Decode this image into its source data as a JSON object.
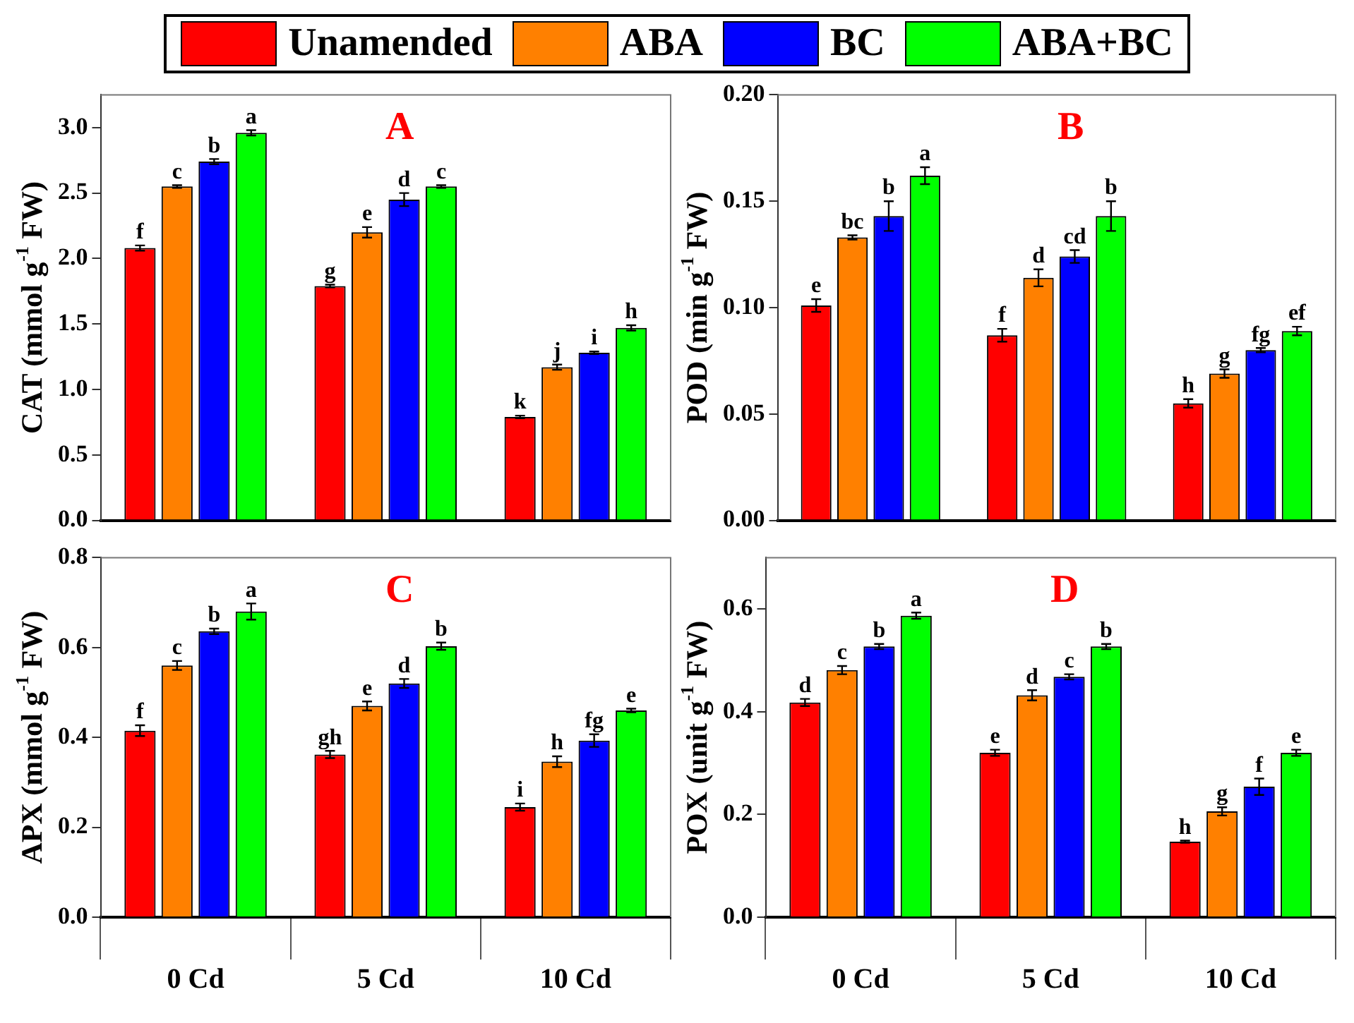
{
  "chart_data": [
    {
      "type": "bar",
      "title": "A",
      "ylabel": "CAT (mmol g$^{-1}$ FW)",
      "categories": [
        null,
        null,
        null
      ],
      "ylim": [
        0,
        3.25
      ],
      "yticks": [
        {
          "value": 0,
          "label": "0.0"
        },
        0.5,
        {
          "value": 1,
          "label": "1.0"
        },
        1.5,
        {
          "value": 2,
          "label": "2.0"
        },
        2.5,
        {
          "value": 3,
          "label": "3.0"
        }
      ],
      "tick_labels": "y",
      "legend": "top",
      "series": [
        {
          "name": "Unamended",
          "color": "#ff0000",
          "values": [
            2.08,
            1.79,
            0.79
          ],
          "errors": [
            0.02,
            0.01,
            0.01
          ],
          "value_labels": [
            "f",
            "g",
            "k"
          ]
        },
        {
          "name": "ABA",
          "color": "#ff8000",
          "values": [
            2.55,
            2.2,
            1.17
          ],
          "errors": [
            0.01,
            0.04,
            0.02
          ],
          "value_labels": [
            "c",
            "e",
            "j"
          ]
        },
        {
          "name": "BC",
          "color": "#0000ff",
          "values": [
            2.74,
            2.45,
            1.28
          ],
          "errors": [
            0.02,
            0.05,
            0.01
          ],
          "value_labels": [
            "b",
            "d",
            "i"
          ]
        },
        {
          "name": "ABA+BC",
          "color": "#00ff00",
          "values": [
            2.96,
            2.55,
            1.47
          ],
          "errors": [
            0.02,
            0.01,
            0.02
          ],
          "value_labels": [
            "a",
            "c",
            "h"
          ]
        }
      ]
    },
    {
      "type": "bar",
      "title": "B",
      "ylabel": "POD (min g$^{-1}$ FW)",
      "categories": [
        null,
        null,
        null
      ],
      "ylim": [
        0,
        0.2
      ],
      "yticks": [
        {
          "value": 0,
          "label": "0.00"
        },
        {
          "value": 0.05,
          "label": "0.05"
        },
        {
          "value": 0.1,
          "label": "0.10"
        },
        {
          "value": 0.15,
          "label": "0.15"
        },
        {
          "value": 0.2,
          "label": "0.20"
        }
      ],
      "tick_labels": "y",
      "series": [
        {
          "color": "#ff0000",
          "values": [
            0.101,
            0.087,
            0.055
          ],
          "errors": [
            0.003,
            0.003,
            0.002
          ],
          "value_labels": [
            "e",
            "f",
            "h"
          ]
        },
        {
          "color": "#ff8000",
          "values": [
            0.133,
            0.114,
            0.069
          ],
          "errors": [
            0.001,
            0.004,
            0.002
          ],
          "value_labels": [
            "bc",
            "d",
            "g"
          ]
        },
        {
          "color": "#0000ff",
          "values": [
            0.143,
            0.124,
            0.08
          ],
          "errors": [
            0.007,
            0.003,
            0.001
          ],
          "value_labels": [
            "b",
            "cd",
            "fg"
          ]
        },
        {
          "color": "#00ff00",
          "values": [
            0.162,
            0.143,
            0.089
          ],
          "errors": [
            0.004,
            0.007,
            0.002
          ],
          "value_labels": [
            "a",
            "b",
            "ef"
          ]
        }
      ]
    },
    {
      "type": "bar",
      "title": "C",
      "ylabel": "APX (mmol g$^{-1}$ FW)",
      "categories": [
        "0 Cd",
        "5 Cd",
        "10 Cd"
      ],
      "ylim": [
        0,
        0.8
      ],
      "yticks": [
        {
          "value": 0,
          "label": "0.0"
        },
        {
          "value": 0.2,
          "label": "0.2"
        },
        {
          "value": 0.4,
          "label": "0.4"
        },
        {
          "value": 0.6,
          "label": "0.6"
        },
        {
          "value": 0.8,
          "label": "0.8"
        }
      ],
      "series": [
        {
          "color": "#ff0000",
          "values": [
            0.415,
            0.362,
            0.245
          ],
          "errors": [
            0.012,
            0.008,
            0.008
          ],
          "value_labels": [
            "f",
            "gh",
            "i"
          ]
        },
        {
          "color": "#ff8000",
          "values": [
            0.56,
            0.47,
            0.346
          ],
          "errors": [
            0.01,
            0.01,
            0.012
          ],
          "value_labels": [
            "c",
            "e",
            "h"
          ]
        },
        {
          "color": "#0000ff",
          "values": [
            0.636,
            0.52,
            0.393
          ],
          "errors": [
            0.006,
            0.01,
            0.014
          ],
          "value_labels": [
            "b",
            "d",
            "fg"
          ]
        },
        {
          "color": "#00ff00",
          "values": [
            0.68,
            0.603,
            0.46
          ],
          "errors": [
            0.018,
            0.008,
            0.004
          ],
          "value_labels": [
            "a",
            "b",
            "e"
          ]
        }
      ]
    },
    {
      "type": "bar",
      "title": "D",
      "ylabel": "POX (unit g$^{-1}$ FW)",
      "categories": [
        "0 Cd",
        "5 Cd",
        "10 Cd"
      ],
      "ylim": [
        0,
        0.7
      ],
      "yticks": [
        {
          "value": 0,
          "label": "0.0"
        },
        {
          "value": 0.2,
          "label": "0.2"
        },
        {
          "value": 0.4,
          "label": "0.4"
        },
        {
          "value": 0.6,
          "label": "0.6"
        }
      ],
      "series": [
        {
          "color": "#ff0000",
          "values": [
            0.418,
            0.32,
            0.147
          ],
          "errors": [
            0.007,
            0.006,
            0.002
          ],
          "value_labels": [
            "d",
            "e",
            "h"
          ]
        },
        {
          "color": "#ff8000",
          "values": [
            0.481,
            0.432,
            0.206
          ],
          "errors": [
            0.008,
            0.01,
            0.008
          ],
          "value_labels": [
            "c",
            "d",
            "g"
          ]
        },
        {
          "color": "#0000ff",
          "values": [
            0.527,
            0.468,
            0.254
          ],
          "errors": [
            0.005,
            0.005,
            0.016
          ],
          "value_labels": [
            "b",
            "c",
            "f"
          ]
        },
        {
          "color": "#00ff00",
          "values": [
            0.587,
            0.527,
            0.32
          ],
          "errors": [
            0.006,
            0.005,
            0.006
          ],
          "value_labels": [
            "a",
            "b",
            "e"
          ]
        }
      ]
    }
  ]
}
